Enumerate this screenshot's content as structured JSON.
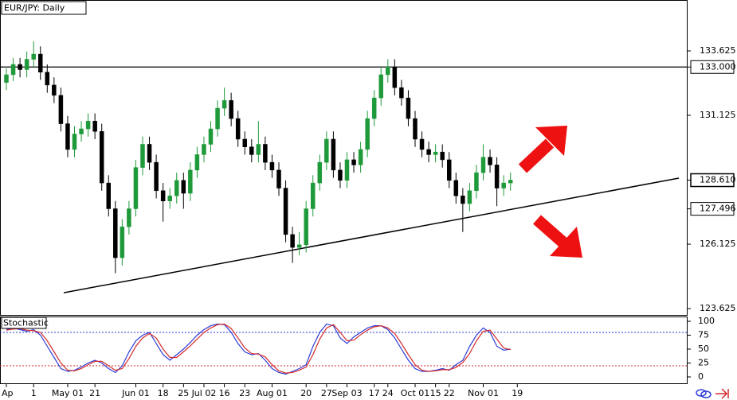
{
  "chart_data": {
    "type": "candlestick",
    "title": "EUR/JPY: Daily",
    "up_color": "#1f9a3a",
    "down_color": "#000000",
    "ylim": [
      123.38,
      135.6
    ],
    "yticks": [
      123.625,
      126.125,
      131.125,
      133.625
    ],
    "price_labels": [
      {
        "value": 133,
        "label": "133.000"
      },
      {
        "value": 128.61,
        "label": "128.610"
      },
      {
        "value": 127.496,
        "label": "127.496"
      }
    ],
    "trendline": [
      124.24,
      128.687
    ],
    "categories": [
      "Ap",
      null,
      null,
      null,
      "1",
      null,
      null,
      null,
      null,
      "May 01",
      null,
      null,
      null,
      "21",
      null,
      null,
      null,
      null,
      null,
      "Jun 01",
      null,
      null,
      null,
      "18",
      null,
      null,
      "25",
      null,
      null,
      "Jul 02",
      null,
      null,
      "16",
      null,
      null,
      "23",
      null,
      null,
      null,
      "Aug 01",
      null,
      null,
      null,
      null,
      "20",
      null,
      null,
      "27",
      null,
      null,
      "Sep 03",
      null,
      null,
      null,
      "17",
      null,
      "24",
      null,
      null,
      null,
      "Oct 01",
      null,
      null,
      "15",
      null,
      "22",
      null,
      null,
      null,
      null,
      "Nov 01",
      null,
      null,
      null,
      null,
      "19"
    ],
    "candles": [
      [
        132.4,
        132.95,
        132.1,
        132.7
      ],
      [
        132.7,
        133.35,
        132.45,
        133.1
      ],
      [
        133.1,
        133.35,
        132.6,
        132.9
      ],
      [
        132.9,
        133.6,
        132.6,
        133.3
      ],
      [
        133.3,
        134.0,
        133.0,
        133.5
      ],
      [
        133.5,
        133.8,
        132.5,
        132.8
      ],
      [
        132.8,
        133.1,
        132.0,
        132.3
      ],
      [
        132.3,
        132.6,
        131.6,
        131.9
      ],
      [
        131.9,
        132.2,
        130.5,
        130.8
      ],
      [
        130.8,
        131.1,
        129.5,
        129.8
      ],
      [
        129.8,
        130.7,
        129.5,
        130.4
      ],
      [
        130.4,
        130.9,
        130.1,
        130.6
      ],
      [
        130.6,
        131.2,
        130.3,
        130.9
      ],
      [
        130.9,
        131.2,
        130.2,
        130.5
      ],
      [
        130.5,
        130.8,
        128.2,
        128.5
      ],
      [
        128.5,
        128.8,
        127.2,
        127.5
      ],
      [
        127.5,
        127.8,
        125.0,
        125.6
      ],
      [
        125.6,
        127.1,
        125.3,
        126.8
      ],
      [
        126.8,
        127.8,
        126.5,
        127.5
      ],
      [
        127.5,
        129.4,
        127.2,
        129.1
      ],
      [
        129.1,
        130.3,
        128.8,
        130.0
      ],
      [
        130.0,
        130.3,
        129.0,
        129.3
      ],
      [
        129.3,
        129.6,
        127.9,
        128.2
      ],
      [
        128.2,
        128.5,
        127.0,
        127.8
      ],
      [
        127.8,
        128.3,
        127.5,
        128.0
      ],
      [
        128.0,
        128.9,
        127.7,
        128.6
      ],
      [
        128.6,
        128.9,
        127.5,
        128.1
      ],
      [
        128.1,
        129.3,
        127.8,
        129.0
      ],
      [
        129.0,
        129.9,
        128.7,
        129.6
      ],
      [
        129.6,
        130.3,
        129.3,
        130.0
      ],
      [
        130.0,
        130.9,
        129.7,
        130.6
      ],
      [
        130.6,
        131.7,
        130.3,
        131.4
      ],
      [
        131.4,
        132.2,
        131.1,
        131.7
      ],
      [
        131.7,
        132.0,
        130.7,
        131.0
      ],
      [
        131.0,
        131.3,
        129.9,
        130.2
      ],
      [
        130.2,
        130.5,
        129.6,
        129.9
      ],
      [
        129.9,
        130.2,
        129.3,
        129.6
      ],
      [
        129.6,
        130.9,
        129.3,
        130.0
      ],
      [
        130.0,
        130.3,
        129.0,
        129.3
      ],
      [
        129.3,
        129.6,
        128.7,
        129.0
      ],
      [
        129.0,
        129.3,
        128.0,
        128.3
      ],
      [
        128.3,
        128.6,
        126.2,
        126.5
      ],
      [
        126.5,
        126.8,
        125.4,
        126.0
      ],
      [
        126.0,
        126.6,
        125.7,
        126.1
      ],
      [
        126.1,
        127.8,
        125.8,
        127.5
      ],
      [
        127.5,
        128.8,
        127.2,
        128.5
      ],
      [
        128.5,
        129.6,
        128.2,
        129.3
      ],
      [
        129.3,
        130.5,
        129.0,
        130.2
      ],
      [
        130.2,
        130.5,
        128.7,
        129.0
      ],
      [
        129.0,
        129.3,
        128.3,
        128.6
      ],
      [
        128.6,
        129.7,
        128.3,
        129.4
      ],
      [
        129.4,
        129.7,
        128.9,
        129.2
      ],
      [
        129.2,
        130.1,
        128.9,
        129.8
      ],
      [
        129.8,
        131.3,
        129.5,
        131.0
      ],
      [
        131.0,
        132.1,
        130.7,
        131.8
      ],
      [
        131.8,
        133.0,
        131.5,
        132.7
      ],
      [
        132.7,
        133.3,
        132.4,
        133.0
      ],
      [
        133.0,
        133.3,
        131.9,
        132.2
      ],
      [
        132.2,
        132.5,
        131.5,
        131.8
      ],
      [
        131.8,
        132.1,
        130.7,
        131.0
      ],
      [
        131.0,
        131.3,
        129.9,
        130.2
      ],
      [
        130.2,
        130.5,
        129.5,
        129.8
      ],
      [
        129.8,
        130.1,
        129.3,
        129.6
      ],
      [
        129.6,
        130.0,
        129.3,
        129.7
      ],
      [
        129.7,
        130.0,
        129.1,
        129.4
      ],
      [
        129.4,
        129.7,
        128.3,
        128.6
      ],
      [
        128.6,
        128.9,
        127.7,
        128.0
      ],
      [
        128.0,
        128.3,
        126.6,
        127.7
      ],
      [
        127.7,
        128.5,
        127.4,
        128.2
      ],
      [
        128.2,
        129.2,
        127.9,
        128.9
      ],
      [
        128.9,
        130.0,
        128.6,
        129.5
      ],
      [
        129.5,
        129.8,
        128.9,
        129.2
      ],
      [
        129.2,
        129.5,
        127.6,
        128.3
      ],
      [
        128.3,
        128.8,
        128.0,
        128.5
      ],
      [
        128.5,
        128.9,
        128.2,
        128.61
      ],
      null
    ],
    "stochastic": {
      "title": "Stochastic",
      "ylim": [
        -12.9,
        108.6
      ],
      "yticks": [
        0,
        25,
        50,
        75,
        100
      ],
      "levels": [
        {
          "value": 80,
          "color": "#2b3bd6"
        },
        {
          "value": 20,
          "color": "#d62b2b"
        }
      ],
      "series": [
        {
          "color": "#2b3bd6",
          "values": [
            85,
            88,
            85,
            82,
            85,
            75,
            55,
            35,
            15,
            10,
            12,
            18,
            25,
            30,
            25,
            15,
            8,
            20,
            45,
            65,
            75,
            80,
            60,
            40,
            30,
            40,
            50,
            62,
            75,
            85,
            92,
            95,
            94,
            80,
            60,
            45,
            40,
            42,
            30,
            15,
            8,
            5,
            10,
            15,
            22,
            55,
            80,
            95,
            92,
            70,
            60,
            72,
            80,
            88,
            92,
            92,
            85,
            70,
            50,
            30,
            15,
            10,
            10,
            12,
            15,
            12,
            22,
            30,
            55,
            75,
            88,
            80,
            55,
            48,
            50,
            null
          ]
        },
        {
          "color": "#d62b2b",
          "values": [
            84,
            86,
            87,
            84,
            83,
            80,
            65,
            45,
            25,
            12,
            11,
            15,
            22,
            28,
            28,
            20,
            12,
            15,
            33,
            55,
            70,
            78,
            70,
            50,
            35,
            35,
            45,
            56,
            68,
            80,
            88,
            94,
            95,
            87,
            70,
            52,
            42,
            41,
            36,
            22,
            11,
            7,
            8,
            12,
            18,
            40,
            68,
            88,
            94,
            80,
            65,
            66,
            76,
            84,
            90,
            92,
            88,
            78,
            60,
            40,
            22,
            12,
            10,
            11,
            13,
            13,
            17,
            26,
            42,
            65,
            82,
            84,
            68,
            52,
            49,
            null
          ]
        }
      ]
    }
  }
}
